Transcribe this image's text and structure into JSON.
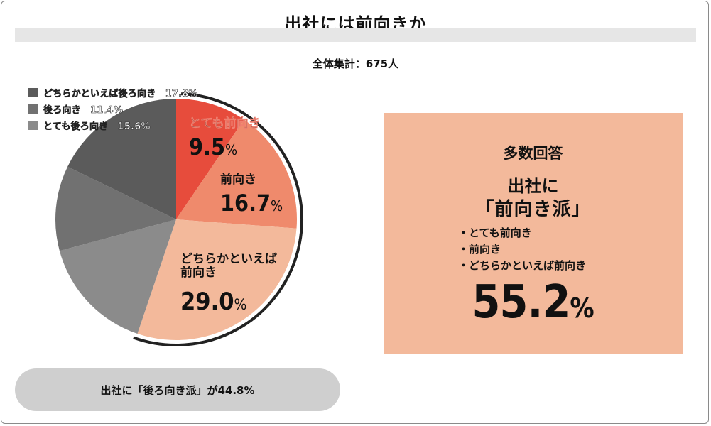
{
  "title": "出社には前向きか",
  "total_label": "全体集計：675人",
  "colors": {
    "very_positive": "#e74c3c",
    "positive": "#ef8a6c",
    "somewhat_positive": "#f3b99b",
    "somewhat_negative": "#5b5b5b",
    "negative": "#717171",
    "very_negative": "#8b8b8b",
    "summary_box": "#f3b99b",
    "pill": "#cfcfcf"
  },
  "chart_data": {
    "type": "pie",
    "unit": "%",
    "start": "12 o'clock",
    "direction": "clockwise",
    "slices": [
      {
        "label": "とても前向き",
        "value": 9.5,
        "value_text": "9.5",
        "color": "#e74c3c"
      },
      {
        "label": "前向き",
        "value": 16.7,
        "value_text": "16.7",
        "color": "#ef8a6c"
      },
      {
        "label": "どちらかといえば前向き",
        "value": 29.0,
        "value_text": "29.0",
        "color": "#f3b99b"
      },
      {
        "label": "とても後ろ向き",
        "value": 15.6,
        "value_text": "15.6",
        "color": "#8b8b8b"
      },
      {
        "label": "後ろ向き",
        "value": 11.4,
        "value_text": "11.4",
        "color": "#717171"
      },
      {
        "label": "どちらかといえば後ろ向き",
        "value": 17.8,
        "value_text": "17.8",
        "color": "#5b5b5b"
      }
    ],
    "legend": [
      {
        "text": "どちらかといえば後ろ向き　17.8%",
        "color": "#5b5b5b"
      },
      {
        "text": "後ろ向き　11.4%",
        "color": "#717171"
      },
      {
        "text": "とても後ろ向き　15.6%",
        "color": "#8b8b8b"
      }
    ],
    "slice_labels": [
      {
        "lines": [
          "とても前向き"
        ],
        "value": "9.5"
      },
      {
        "lines": [
          "前向き"
        ],
        "value": "16.7"
      },
      {
        "lines": [
          "どちらかといえば",
          "前向き"
        ],
        "value": "29.0"
      }
    ]
  },
  "summary": {
    "heading": "多数回答",
    "line1": "出社に",
    "line2": "「前向き派」",
    "items": [
      "・とても前向き",
      "・前向き",
      "・どちらかといえば前向き"
    ],
    "total_value": "55.2",
    "total_unit": "%"
  },
  "bottom_note": "出社に「後ろ向き派」が44.8%"
}
